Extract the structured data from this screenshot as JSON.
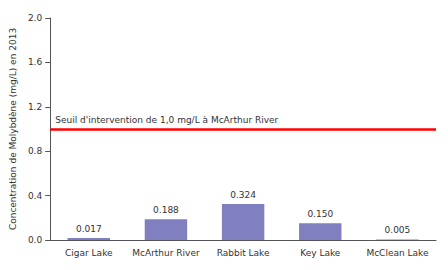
{
  "chart_data": {
    "type": "bar",
    "categories": [
      "Cigar Lake",
      "McArthur River",
      "Rabbit Lake",
      "Key Lake",
      "McClean Lake"
    ],
    "values": [
      0.017,
      0.188,
      0.324,
      0.15,
      0.005
    ],
    "value_labels": [
      "0.017",
      "0.188",
      "0.324",
      "0.150",
      "0.005"
    ],
    "data_labels": true,
    "color": "#8080C0",
    "ylabel": "Concentration de Molybdène (mg/L) en 2013",
    "ylim": [
      0,
      2.0
    ],
    "yticks": [
      {
        "value": 0,
        "label": "0.0"
      },
      0.4,
      0.8,
      1.2,
      1.6,
      {
        "value": 2.0,
        "label": "2.0"
      }
    ],
    "threshold": {
      "value": 1.0,
      "label": "Seuil d'intervention de 1,0 mg/L à McArthur River",
      "color": "red"
    },
    "grid": false
  }
}
